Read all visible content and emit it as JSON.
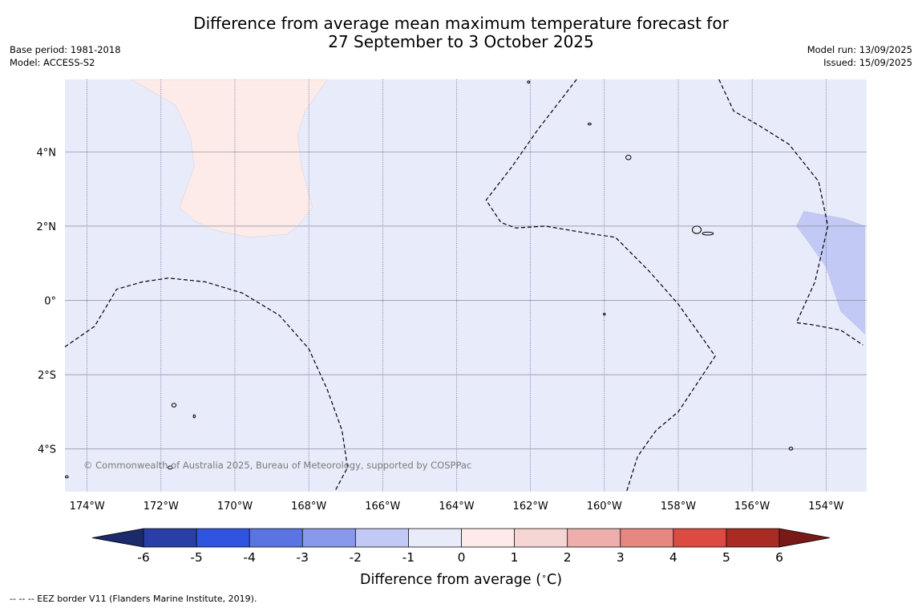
{
  "title": {
    "line1": "Difference from average mean maximum temperature forecast for",
    "line2": "27 September to 3 October 2025"
  },
  "base_period": "Base period: 1981-2018",
  "model": "Model: ACCESS-S2",
  "model_run": "Model run: 13/09/2025",
  "issued": "Issued: 15/09/2025",
  "copyright": "© Commonwealth of Australia 2025, Bureau of Meteorology, supported by COSPPac",
  "footer_note": "--  --  -- EEZ border V11 (Flanders Marine Institute, 2019).",
  "map": {
    "lon_range": [
      -174.6,
      -152.9
    ],
    "lat_range": [
      -5.15,
      5.95
    ],
    "lon_ticks": [
      {
        "value": -174,
        "label": "174°W"
      },
      {
        "value": -172,
        "label": "172°W"
      },
      {
        "value": -170,
        "label": "170°W"
      },
      {
        "value": -168,
        "label": "168°W"
      },
      {
        "value": -166,
        "label": "166°W"
      },
      {
        "value": -164,
        "label": "164°W"
      },
      {
        "value": -162,
        "label": "162°W"
      },
      {
        "value": -160,
        "label": "160°W"
      },
      {
        "value": -158,
        "label": "158°W"
      },
      {
        "value": -156,
        "label": "156°W"
      },
      {
        "value": -154,
        "label": "154°W"
      }
    ],
    "lat_ticks": [
      {
        "value": 4,
        "label": "4°N"
      },
      {
        "value": 2,
        "label": "2°N"
      },
      {
        "value": 0,
        "label": "0°"
      },
      {
        "value": -2,
        "label": "2°S"
      },
      {
        "value": -4,
        "label": "4°S"
      }
    ],
    "background_anomaly_range": [
      -1,
      0
    ],
    "anomaly_regions": [
      {
        "name": "warm-region",
        "range": [
          0,
          1
        ],
        "points": [
          [
            -172.8,
            5.95
          ],
          [
            -171.6,
            5.25
          ],
          [
            -171.2,
            4.4
          ],
          [
            -171.1,
            3.6
          ],
          [
            -171.5,
            2.5
          ],
          [
            -171.1,
            2.15
          ],
          [
            -170.6,
            1.9
          ],
          [
            -169.6,
            1.7
          ],
          [
            -168.6,
            1.78
          ],
          [
            -168.3,
            2.0
          ],
          [
            -167.9,
            2.5
          ],
          [
            -168.2,
            3.6
          ],
          [
            -168.3,
            4.45
          ],
          [
            -168.1,
            5.1
          ],
          [
            -167.5,
            5.95
          ]
        ]
      },
      {
        "name": "cool-region",
        "range": [
          -2,
          -1
        ],
        "points": [
          [
            -154.6,
            2.4
          ],
          [
            -153.5,
            2.2
          ],
          [
            -152.95,
            2.0
          ],
          [
            -152.95,
            -0.9
          ],
          [
            -153.6,
            -0.3
          ],
          [
            -154.0,
            0.9
          ],
          [
            -154.5,
            1.6
          ],
          [
            -154.8,
            2.0
          ]
        ]
      }
    ],
    "eez_borders": [
      [
        [
          -174.6,
          -1.25
        ],
        [
          -173.8,
          -0.7
        ],
        [
          -173.2,
          0.3
        ],
        [
          -172.5,
          0.5
        ],
        [
          -171.8,
          0.6
        ],
        [
          -170.8,
          0.5
        ],
        [
          -169.8,
          0.2
        ],
        [
          -168.8,
          -0.4
        ],
        [
          -168.0,
          -1.3
        ],
        [
          -167.5,
          -2.4
        ],
        [
          -167.1,
          -3.5
        ],
        [
          -166.95,
          -4.5
        ],
        [
          -167.3,
          -5.15
        ]
      ],
      [
        [
          -160.75,
          5.95
        ],
        [
          -161.8,
          4.6
        ],
        [
          -162.5,
          3.6
        ],
        [
          -163.2,
          2.7
        ],
        [
          -162.8,
          2.1
        ],
        [
          -162.4,
          1.95
        ],
        [
          -161.6,
          2.0
        ],
        [
          -160.4,
          1.8
        ],
        [
          -159.7,
          1.7
        ],
        [
          -158.8,
          0.8
        ],
        [
          -158.0,
          -0.1
        ],
        [
          -157.0,
          -1.5
        ],
        [
          -158.0,
          -3.0
        ],
        [
          -158.6,
          -3.5
        ],
        [
          -159.1,
          -4.2
        ],
        [
          -159.4,
          -5.15
        ]
      ],
      [
        [
          -156.9,
          5.95
        ],
        [
          -156.5,
          5.1
        ],
        [
          -155.8,
          4.7
        ],
        [
          -155.0,
          4.2
        ],
        [
          -154.2,
          3.2
        ],
        [
          -153.95,
          2.0
        ],
        [
          -154.3,
          0.5
        ],
        [
          -154.8,
          -0.6
        ],
        [
          -154.4,
          -0.65
        ],
        [
          -153.6,
          -0.8
        ],
        [
          -153.0,
          -1.2
        ]
      ]
    ],
    "islands": [
      {
        "name": "island-a",
        "lon": -162.05,
        "lat": 5.88,
        "rx": 0.03,
        "ry": 0.03
      },
      {
        "name": "island-b",
        "lon": -160.4,
        "lat": 4.75,
        "rx": 0.04,
        "ry": 0.02
      },
      {
        "name": "island-c",
        "lon": -159.35,
        "lat": 3.85,
        "rx": 0.07,
        "ry": 0.06
      },
      {
        "name": "island-d",
        "lon": -157.5,
        "lat": 1.9,
        "rx": 0.12,
        "ry": 0.1
      },
      {
        "name": "island-e",
        "lon": -157.2,
        "lat": 1.8,
        "rx": 0.15,
        "ry": 0.04
      },
      {
        "name": "island-f",
        "lon": -171.65,
        "lat": -2.82,
        "rx": 0.06,
        "ry": 0.05
      },
      {
        "name": "island-g",
        "lon": -171.1,
        "lat": -3.12,
        "rx": 0.02,
        "ry": 0.04
      },
      {
        "name": "island-h",
        "lon": -171.75,
        "lat": -4.5,
        "rx": 0.06,
        "ry": 0.04
      },
      {
        "name": "island-i",
        "lon": -154.95,
        "lat": -3.99,
        "rx": 0.05,
        "ry": 0.04
      },
      {
        "name": "island-j",
        "lon": -174.55,
        "lat": -4.75,
        "rx": 0.04,
        "ry": 0.03
      },
      {
        "name": "island-k",
        "lon": -160.0,
        "lat": -0.37,
        "rx": 0.02,
        "ry": 0.02
      }
    ]
  },
  "colorbar": {
    "label": "Difference from average (",
    "degree_symbol": "∘",
    "unit_suffix": "C)",
    "ticks": [
      "-6",
      "-5",
      "-4",
      "-3",
      "-2",
      "-1",
      "0",
      "1",
      "2",
      "3",
      "4",
      "5",
      "6"
    ],
    "under_color": "#1b2a6b",
    "over_color": "#7a1a18",
    "bin_colors": [
      "#2a3ea8",
      "#2f54e0",
      "#5a74e4",
      "#8898ec",
      "#c2c9f4",
      "#e8ebfa",
      "#fdebea",
      "#f6d6d5",
      "#eeaeac",
      "#e78782",
      "#dd4a41",
      "#aa2a24"
    ]
  }
}
